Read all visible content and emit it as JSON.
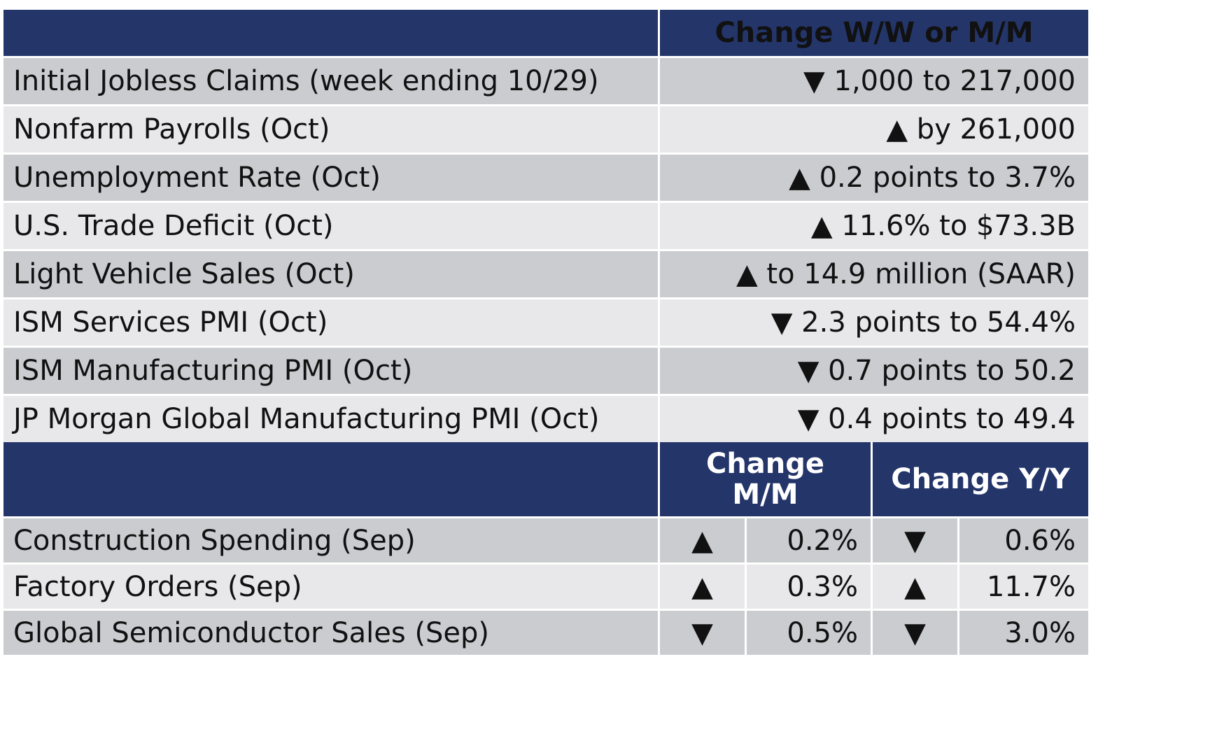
{
  "top_header": {
    "col1": "",
    "col2": "Change W/W or M/M"
  },
  "weekly_rows": [
    {
      "label": "Initial Jobless Claims (week ending 10/29)",
      "value": "▼ 1,000 to 217,000"
    },
    {
      "label": "Nonfarm Payrolls (Oct)",
      "value": "▲ by 261,000"
    },
    {
      "label": "Unemployment Rate (Oct)",
      "value": "▲ 0.2 points to 3.7%"
    },
    {
      "label": "U.S. Trade Deficit (Oct)",
      "value": "▲ 11.6% to $73.3B"
    },
    {
      "label": "Light Vehicle Sales (Oct)",
      "value": "▲ to 14.9 million (SAAR)"
    },
    {
      "label": "ISM Services PMI (Oct)",
      "value": "▼ 2.3 points to 54.4%"
    },
    {
      "label": "ISM Manufacturing PMI (Oct)",
      "value": "▼ 0.7 points to 50.2"
    },
    {
      "label": "JP Morgan Global Manufacturing PMI (Oct)",
      "value": "▼ 0.4 points to 49.4"
    }
  ],
  "bottom_header": {
    "col1": "",
    "mm_line1": "Change",
    "mm_line2": "M/M",
    "yy": "Change Y/Y"
  },
  "monthly_rows": [
    {
      "label": "Construction Spending (Sep)",
      "mm_arrow": "▲",
      "mm_value": "0.2%",
      "yy_arrow": "▼",
      "yy_value": "0.6%"
    },
    {
      "label": "Factory Orders (Sep)",
      "mm_arrow": "▲",
      "mm_value": "0.3%",
      "yy_arrow": "▲",
      "yy_value": "11.7%"
    },
    {
      "label": "Global Semiconductor Sales (Sep)",
      "mm_arrow": "▼",
      "mm_value": "0.5%",
      "yy_arrow": "▼",
      "yy_value": "3.0%"
    }
  ],
  "colors": {
    "header_bg": "#24356a",
    "row_dark": "#cbccd0",
    "row_light": "#e8e8ea"
  }
}
